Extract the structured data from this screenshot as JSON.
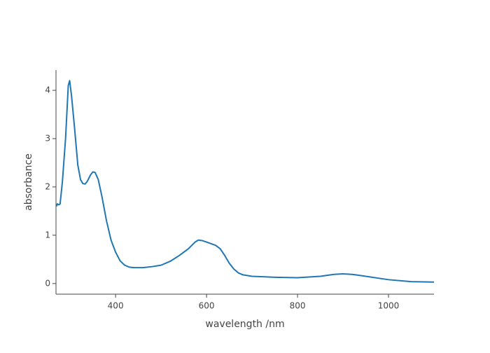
{
  "chart_data": {
    "type": "line",
    "x_label": "wavelength /nm",
    "y_label": "absorbance",
    "x": [
      270,
      272,
      275,
      278,
      283,
      290,
      296,
      299,
      303,
      310,
      317,
      323,
      328,
      333,
      338,
      345,
      350,
      355,
      362,
      370,
      380,
      390,
      400,
      410,
      420,
      430,
      440,
      460,
      480,
      500,
      520,
      540,
      560,
      575,
      582,
      590,
      600,
      620,
      630,
      640,
      650,
      660,
      670,
      680,
      700,
      750,
      800,
      850,
      880,
      900,
      920,
      950,
      1000,
      1050,
      1100
    ],
    "values": [
      1.6,
      1.65,
      1.63,
      1.65,
      2.1,
      3.0,
      4.1,
      4.2,
      3.9,
      3.2,
      2.45,
      2.15,
      2.07,
      2.06,
      2.12,
      2.25,
      2.31,
      2.3,
      2.15,
      1.8,
      1.3,
      0.9,
      0.65,
      0.47,
      0.38,
      0.34,
      0.33,
      0.33,
      0.35,
      0.38,
      0.46,
      0.58,
      0.72,
      0.86,
      0.9,
      0.89,
      0.86,
      0.79,
      0.72,
      0.58,
      0.42,
      0.3,
      0.22,
      0.18,
      0.15,
      0.13,
      0.12,
      0.15,
      0.19,
      0.2,
      0.19,
      0.15,
      0.08,
      0.04,
      0.03
    ],
    "color": "#1f77b4",
    "xlim": [
      269,
      1100
    ],
    "xticks": [
      400,
      600,
      800,
      1000
    ],
    "ylim": [
      -0.22,
      4.42
    ],
    "yticks": [
      0,
      1,
      2,
      3,
      4
    ]
  }
}
